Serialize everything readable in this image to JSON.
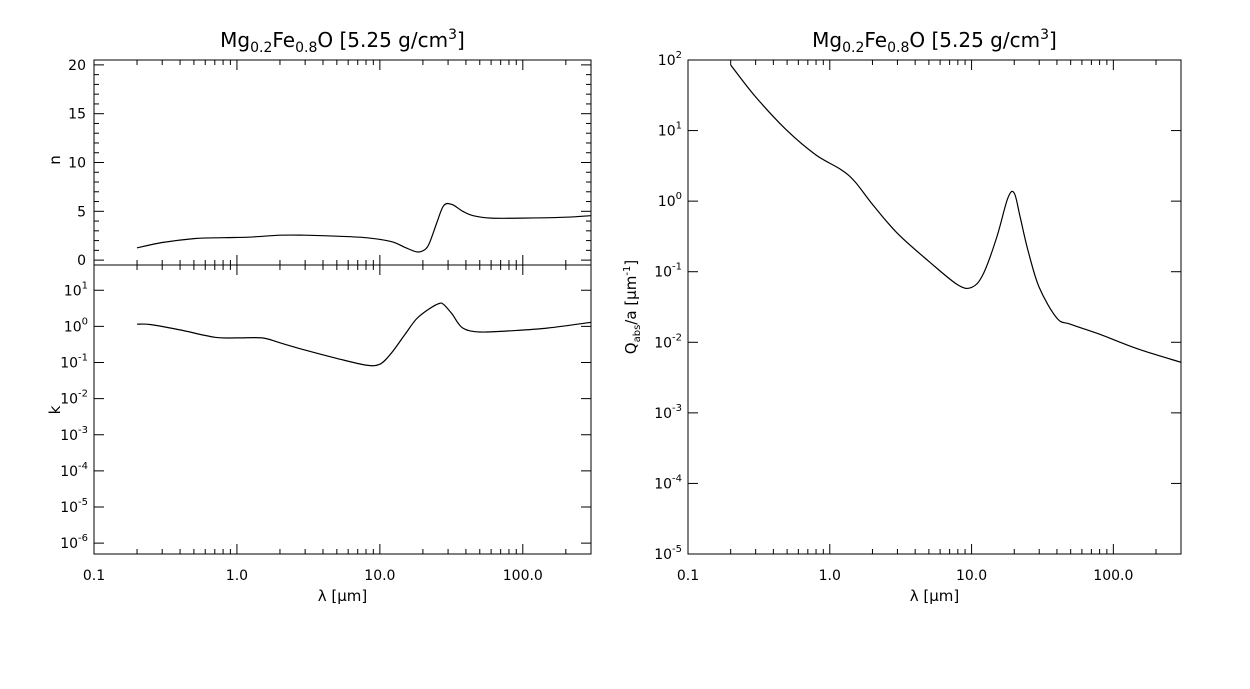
{
  "chart_data": [
    {
      "type": "line",
      "panel": "n",
      "title": "Mg0.2Fe0.8O [5.25 g/cm3]",
      "title_parts": {
        "el1": "Mg",
        "sub1": "0.2",
        "el2": "Fe",
        "sub2": "0.8",
        "el3": "O [5.25 g/cm",
        "sup": "3",
        "end": "]"
      },
      "xlabel": "λ [μm]",
      "ylabel": "n",
      "xscale": "log",
      "yscale": "linear",
      "xlim": [
        0.1,
        300
      ],
      "ylim": [
        -0.5,
        20.5
      ],
      "xticks": [
        "0.1",
        "1.0",
        "10.0",
        "100.0"
      ],
      "yticks": [
        "0",
        "5",
        "10",
        "15",
        "20"
      ],
      "series": [
        {
          "x": [
            0.2,
            0.3,
            0.5,
            0.8,
            1.2,
            2,
            3,
            5,
            8,
            12,
            15,
            18,
            20,
            22,
            25,
            28,
            32,
            38,
            45,
            60,
            100,
            200,
            300
          ],
          "y": [
            1.25,
            1.8,
            2.2,
            2.3,
            2.35,
            2.55,
            2.55,
            2.45,
            2.3,
            1.9,
            1.3,
            0.85,
            0.95,
            1.6,
            3.8,
            5.6,
            5.7,
            5.0,
            4.55,
            4.3,
            4.3,
            4.4,
            4.55
          ]
        }
      ]
    },
    {
      "type": "line",
      "panel": "k",
      "xlabel": "λ [μm]",
      "ylabel": "k",
      "xscale": "log",
      "yscale": "log",
      "xlim": [
        0.1,
        300
      ],
      "ylim": [
        5e-07,
        50
      ],
      "xticks": [
        "0.1",
        "1.0",
        "10.0",
        "100.0"
      ],
      "yticks": [
        {
          "base": "10",
          "exp": "1"
        },
        {
          "base": "10",
          "exp": "0"
        },
        {
          "base": "10",
          "exp": "-1"
        },
        {
          "base": "10",
          "exp": "-2"
        },
        {
          "base": "10",
          "exp": "-3"
        },
        {
          "base": "10",
          "exp": "-4"
        },
        {
          "base": "10",
          "exp": "-5"
        },
        {
          "base": "10",
          "exp": "-6"
        }
      ],
      "series": [
        {
          "x": [
            0.2,
            0.25,
            0.4,
            0.7,
            1.0,
            1.5,
            2,
            3,
            5,
            8,
            10,
            12,
            15,
            18,
            22,
            26,
            28,
            32,
            38,
            50,
            80,
            150,
            300
          ],
          "y": [
            1.15,
            1.12,
            0.8,
            0.5,
            0.48,
            0.48,
            0.35,
            0.22,
            0.13,
            0.085,
            0.09,
            0.18,
            0.6,
            1.6,
            3.0,
            4.3,
            4.0,
            2.2,
            0.9,
            0.7,
            0.75,
            0.9,
            1.3
          ]
        }
      ]
    },
    {
      "type": "line",
      "panel": "Qabs",
      "title": "Mg0.2Fe0.8O [5.25 g/cm3]",
      "title_parts": {
        "el1": "Mg",
        "sub1": "0.2",
        "el2": "Fe",
        "sub2": "0.8",
        "el3": "O [5.25 g/cm",
        "sup": "3",
        "end": "]"
      },
      "xlabel": "λ [μm]",
      "ylabel": "Qabs/a [μm-1]",
      "ylabel_parts": {
        "q": "Q",
        "sub": "abs",
        "mid": "/a [μm",
        "sup": "-1",
        "end": "]"
      },
      "xscale": "log",
      "yscale": "log",
      "xlim": [
        0.1,
        300
      ],
      "ylim": [
        1e-05,
        100
      ],
      "xticks": [
        "0.1",
        "1.0",
        "10.0",
        "100.0"
      ],
      "yticks": [
        {
          "base": "10",
          "exp": "2"
        },
        {
          "base": "10",
          "exp": "1"
        },
        {
          "base": "10",
          "exp": "0"
        },
        {
          "base": "10",
          "exp": "-1"
        },
        {
          "base": "10",
          "exp": "-2"
        },
        {
          "base": "10",
          "exp": "-3"
        },
        {
          "base": "10",
          "exp": "-4"
        },
        {
          "base": "10",
          "exp": "-5"
        }
      ],
      "series": [
        {
          "x": [
            0.2,
            0.3,
            0.5,
            0.8,
            1.2,
            1.5,
            2,
            3,
            5,
            8,
            10,
            12,
            15,
            18,
            20,
            22,
            25,
            30,
            40,
            50,
            80,
            150,
            300
          ],
          "y": [
            85,
            30,
            10,
            4.5,
            2.8,
            1.9,
            0.9,
            0.35,
            0.14,
            0.065,
            0.06,
            0.09,
            0.3,
            1.1,
            1.3,
            0.6,
            0.2,
            0.06,
            0.022,
            0.018,
            0.013,
            0.008,
            0.0052
          ]
        }
      ]
    }
  ]
}
